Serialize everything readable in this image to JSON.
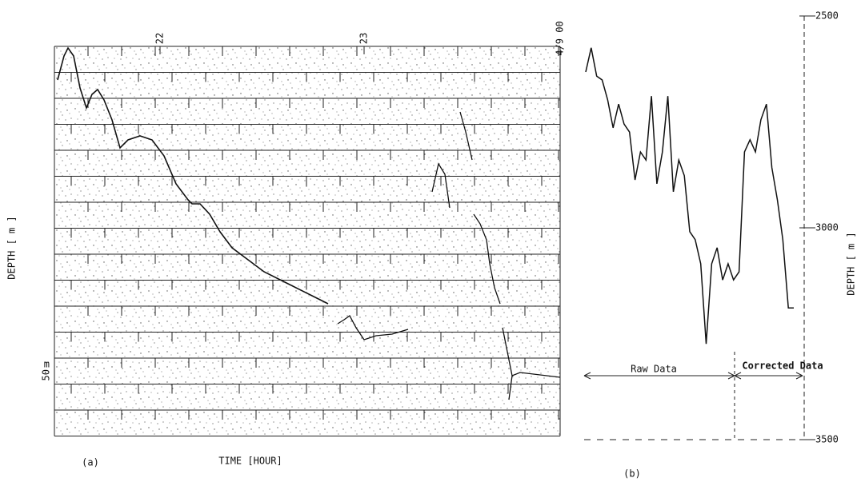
{
  "chart_data": [
    {
      "type": "echogram",
      "label": "(a)",
      "xlabel": "TIME [HOUR]",
      "ylabel": "DEPTH [ m ]",
      "scale_unit": "m",
      "scale_value": "50",
      "xticks": [
        "22",
        "23",
        "4/9 00"
      ]
    },
    {
      "type": "line",
      "label": "(b)",
      "ylabel": "DEPTH [ m ]",
      "color": "#111111",
      "categories": [
        null,
        null,
        null,
        null,
        null,
        null,
        null,
        null,
        null,
        null,
        null,
        null,
        null,
        null,
        null,
        null,
        null,
        null,
        null,
        null,
        null,
        null,
        null,
        null,
        null,
        null,
        null,
        null,
        null,
        null,
        null,
        null,
        null,
        null,
        null,
        null,
        null,
        null,
        null
      ],
      "values": [
        2632,
        2575,
        2642,
        2651,
        2698,
        2764,
        2708,
        2755,
        2774,
        2887,
        2821,
        2840,
        2689,
        2896,
        2821,
        2689,
        2915,
        2840,
        2877,
        3009,
        3028,
        3085,
        3274,
        3085,
        3047,
        3123,
        3085,
        3123,
        3104,
        2821,
        2792,
        2821,
        2745,
        2708,
        2858,
        2934,
        3028,
        3189,
        3189
      ],
      "ylim": [
        2500,
        3500
      ],
      "yticks": [
        2500,
        3000,
        3500
      ],
      "y_inverted": true,
      "annotations": [
        "Raw Data",
        "Corrected Data"
      ]
    }
  ]
}
